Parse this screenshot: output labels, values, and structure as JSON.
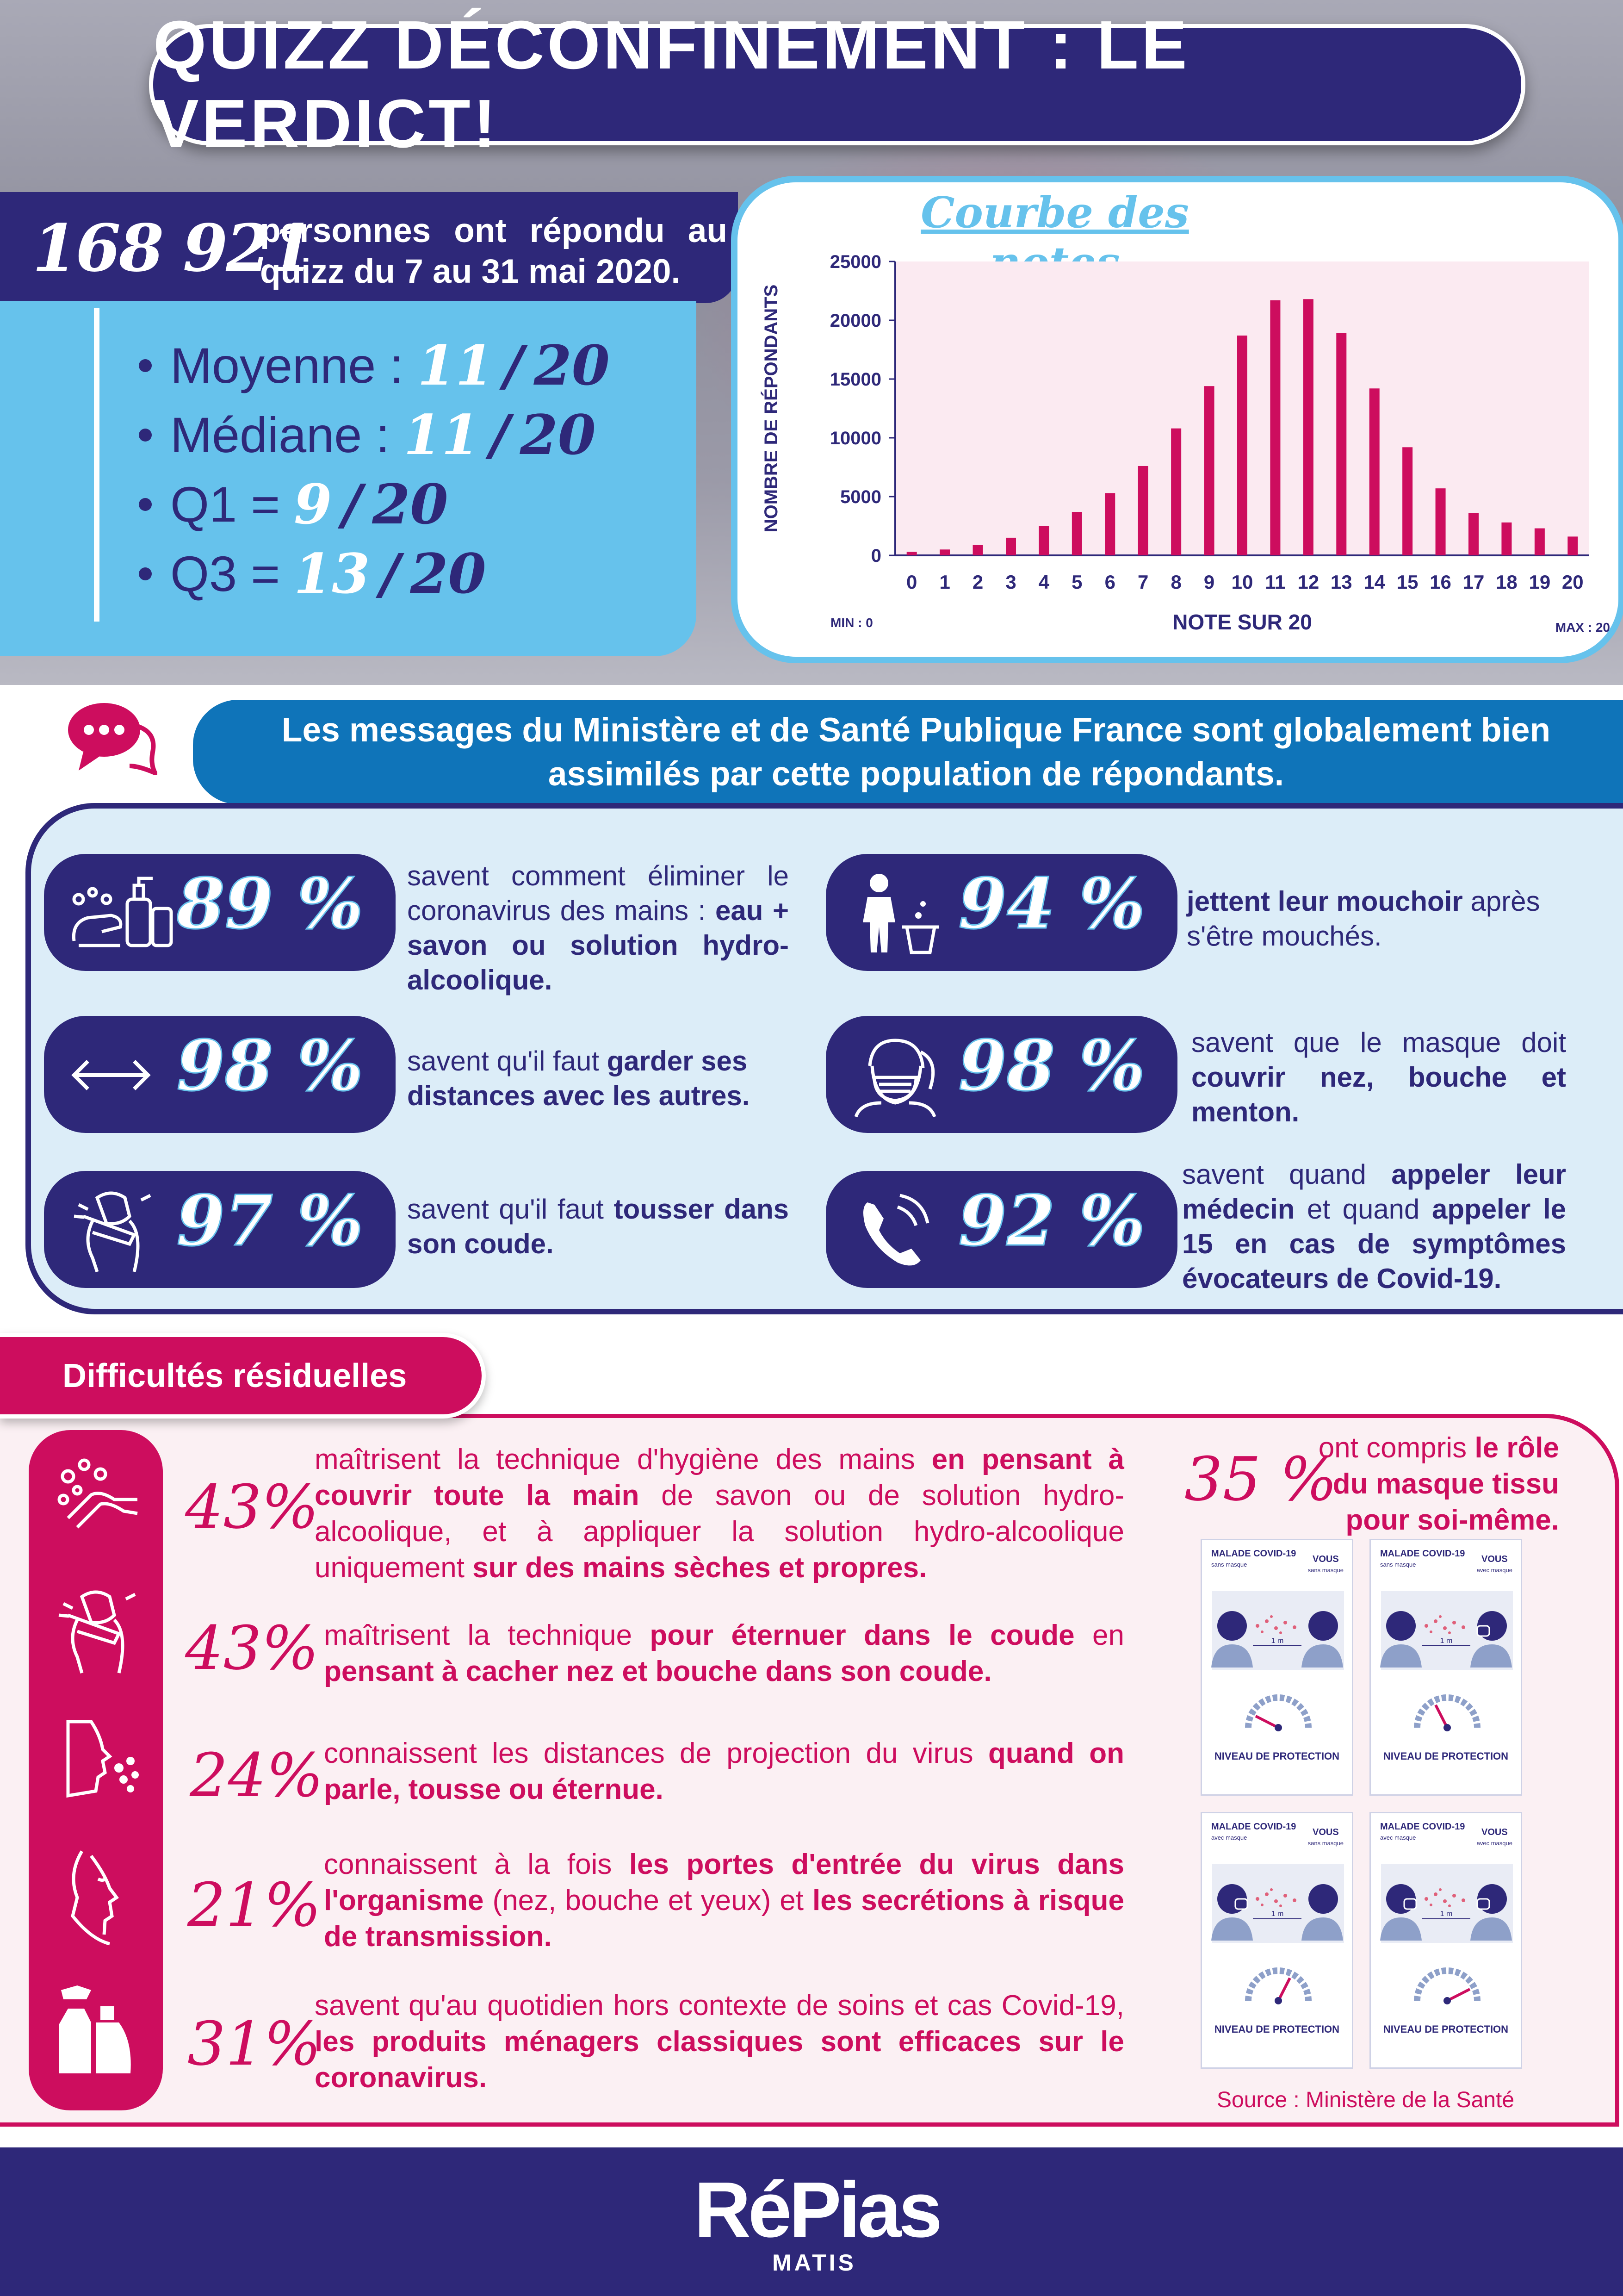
{
  "title": "QUIZZ DÉCONFINEMENT : LE VERDICT!",
  "respondents": {
    "count": "168 921",
    "text": "personnes ont répondu au quizz du 7 au 31 mai 2020."
  },
  "stats": [
    {
      "label": "Moyenne :",
      "value": "11",
      "sep": "/",
      "total": "20"
    },
    {
      "label": "Médiane :",
      "value": "11",
      "sep": "/",
      "total": "20"
    },
    {
      "label": "Q1 =",
      "value": "9",
      "sep": "/",
      "total": "20"
    },
    {
      "label": "Q3 =",
      "value": "13",
      "sep": "/",
      "total": "20"
    }
  ],
  "chart_data": {
    "type": "bar",
    "title": "Courbe des notes",
    "xlabel": "NOTE SUR 20",
    "ylabel": "NOMBRE DE RÉPONDANTS",
    "categories": [
      "0",
      "1",
      "2",
      "3",
      "4",
      "5",
      "6",
      "7",
      "8",
      "9",
      "10",
      "11",
      "12",
      "13",
      "14",
      "15",
      "16",
      "17",
      "18",
      "19",
      "20"
    ],
    "values": [
      300,
      500,
      900,
      1500,
      2500,
      3700,
      5300,
      7600,
      10800,
      14400,
      18700,
      21700,
      21800,
      18900,
      14200,
      9200,
      5700,
      3600,
      2800,
      2300,
      1600
    ],
    "yticks": [
      "0",
      "5000",
      "10000",
      "15000",
      "20000",
      "25000"
    ],
    "ylim": [
      0,
      25000
    ],
    "min_label": "MIN : 0",
    "max_label": "MAX : 20",
    "bar_color": "#cd0d5e",
    "plot_bg": "#fbeaf1"
  },
  "message": "Les messages du Ministère et de Santé Publique France sont globalement bien assimilés par cette population de répondants.",
  "positives": [
    {
      "pct": "89 %",
      "icon": "hand-washing-icon",
      "t1": "savent comment éliminer le coronavirus des mains : ",
      "b1": "eau + savon ou solution hydro-alcoolique.",
      "t2": ""
    },
    {
      "pct": "94 %",
      "icon": "tissue-bin-icon",
      "t1": "",
      "b1": "jettent leur mouchoir",
      "t2": " après s'être mouchés."
    },
    {
      "pct": "98 %",
      "icon": "distance-arrow-icon",
      "t1": "savent qu'il faut ",
      "b1": "garder ses distances avec les autres.",
      "t2": ""
    },
    {
      "pct": "98 %",
      "icon": "face-mask-icon",
      "t1": "savent que le masque doit ",
      "b1": "couvrir nez, bouche et menton.",
      "t2": ""
    },
    {
      "pct": "97 %",
      "icon": "cough-elbow-icon",
      "t1": "savent qu'il faut ",
      "b1": "tousser dans son coude.",
      "t2": ""
    },
    {
      "pct": "92 %",
      "icon": "phone-icon",
      "t1": "savent quand ",
      "b1": "appeler leur médecin",
      "t2": " et quand ",
      "b2": "appeler le 15 en cas de symptômes évocateurs de Covid-19."
    }
  ],
  "difficulties_title": "Difficultés résiduelles",
  "difficulties": [
    {
      "pct": "43%",
      "icon": "hand-washing-icon",
      "t1": "maîtrisent la technique d'hygiène des mains ",
      "b1": "en pensant à couvrir toute la main",
      "t2": " de savon ou de solution hydro-alcoolique, et à appliquer la solution hydro-alcoolique uniquement ",
      "b2": "sur des mains sèches et propres."
    },
    {
      "pct": "43%",
      "icon": "sneeze-elbow-icon",
      "t1": "maîtrisent la technique ",
      "b1": "pour éternuer dans le coude",
      "t2": "  en ",
      "b2": "pensant à cacher nez et bouche dans son coude."
    },
    {
      "pct": "24%",
      "icon": "droplets-face-icon",
      "t1": "connaissent les distances de projection du virus ",
      "b1": "quand on parle, tousse ou éternue.",
      "t2": "",
      "b2": ""
    },
    {
      "pct": "21%",
      "icon": "face-profile-icon",
      "t1": "connaissent à la fois ",
      "b1": "les portes d'entrée du virus dans l'organisme",
      "t2": " (nez, bouche et yeux) et ",
      "b2": "les secrétions à risque de transmission."
    },
    {
      "pct": "31%",
      "icon": "cleaning-products-icon",
      "t1": "savent qu'au quotidien hors contexte de soins et cas Covid-19, ",
      "b1": "les produits ménagers classiques sont efficaces sur le coronavirus.",
      "t2": "",
      "b2": ""
    }
  ],
  "mask": {
    "pct": "35 %",
    "t1": "ont compris ",
    "b1": "le rôle du masque tissu pour soi-même.",
    "cards": [
      {
        "left": "MALADE COVID-19",
        "left_sub": "sans masque",
        "right": "VOUS",
        "right_sub": "sans masque",
        "dist": "1 m",
        "level": "NIVEAU DE PROTECTION",
        "gauge": 0.15
      },
      {
        "left": "MALADE COVID-19",
        "left_sub": "sans masque",
        "right": "VOUS",
        "right_sub": "avec masque",
        "dist": "1 m",
        "level": "NIVEAU DE PROTECTION",
        "gauge": 0.35
      },
      {
        "left": "MALADE COVID-19",
        "left_sub": "avec masque",
        "right": "VOUS",
        "right_sub": "sans masque",
        "dist": "1 m",
        "level": "NIVEAU DE PROTECTION",
        "gauge": 0.65
      },
      {
        "left": "MALADE COVID-19",
        "left_sub": "avec masque",
        "right": "VOUS",
        "right_sub": "avec masque",
        "dist": "1 m",
        "level": "NIVEAU DE PROTECTION",
        "gauge": 0.85
      }
    ]
  },
  "source": "Source : Ministère de la Santé",
  "logo": {
    "name": "RéPias",
    "sub": "MATIS"
  },
  "colors": {
    "navy": "#2e2879",
    "sky": "#66c2ec",
    "blue": "#0f74b9",
    "pink": "#cd0d5e"
  }
}
